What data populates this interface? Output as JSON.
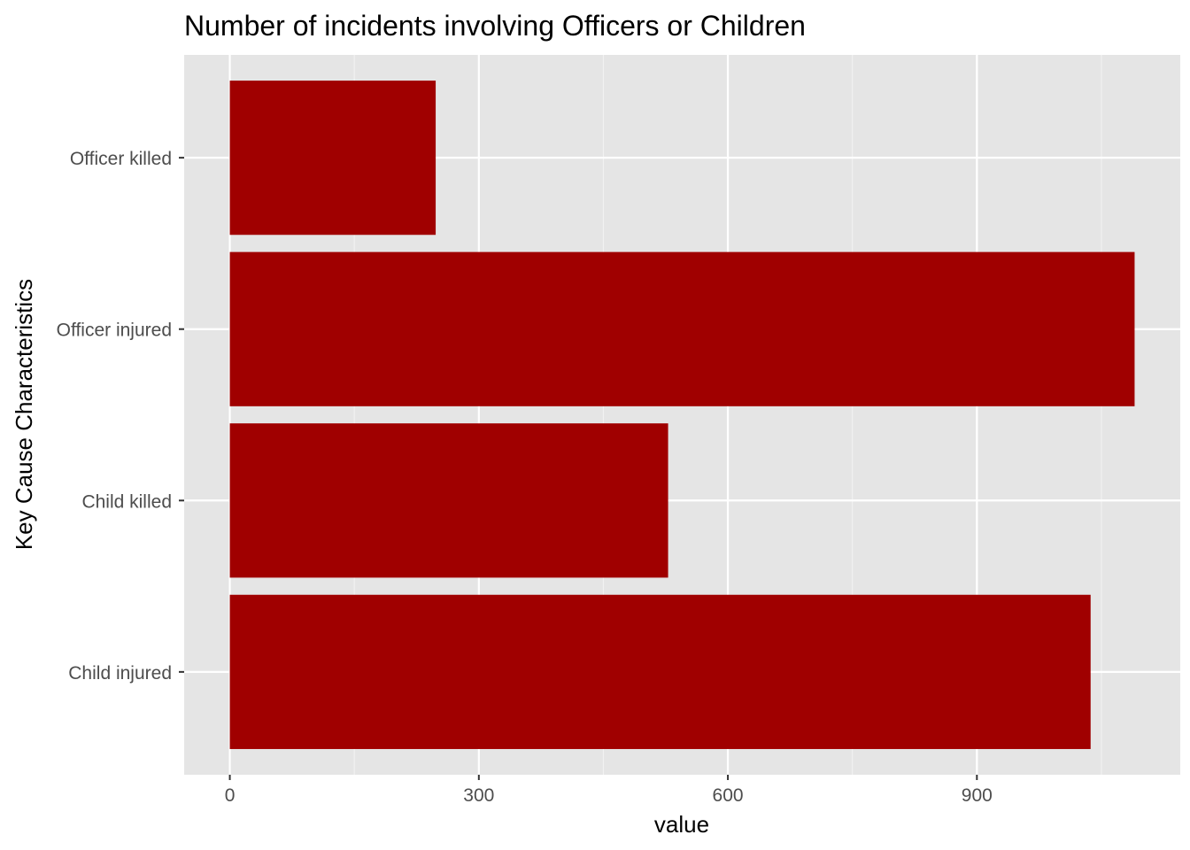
{
  "chart_data": {
    "type": "bar",
    "orientation": "horizontal",
    "title": "Number of incidents involving Officers or Children",
    "xlabel": "value",
    "ylabel": "Key Cause Characteristics",
    "categories": [
      "Child injured",
      "Child killed",
      "Officer injured",
      "Officer killed"
    ],
    "values": [
      1037,
      528,
      1090,
      248
    ],
    "xlim": [
      -55,
      1145
    ],
    "x_ticks": [
      0,
      300,
      600,
      900
    ],
    "x_tick_labels": [
      "0",
      "300",
      "600",
      "900"
    ],
    "grid": true,
    "legend": "none",
    "colors": {
      "bar": "#a00000",
      "panel": "#e5e5e5",
      "grid_major": "#ffffff",
      "grid_minor": "#f2f2f2",
      "tick_text": "#4d4d4d"
    }
  }
}
